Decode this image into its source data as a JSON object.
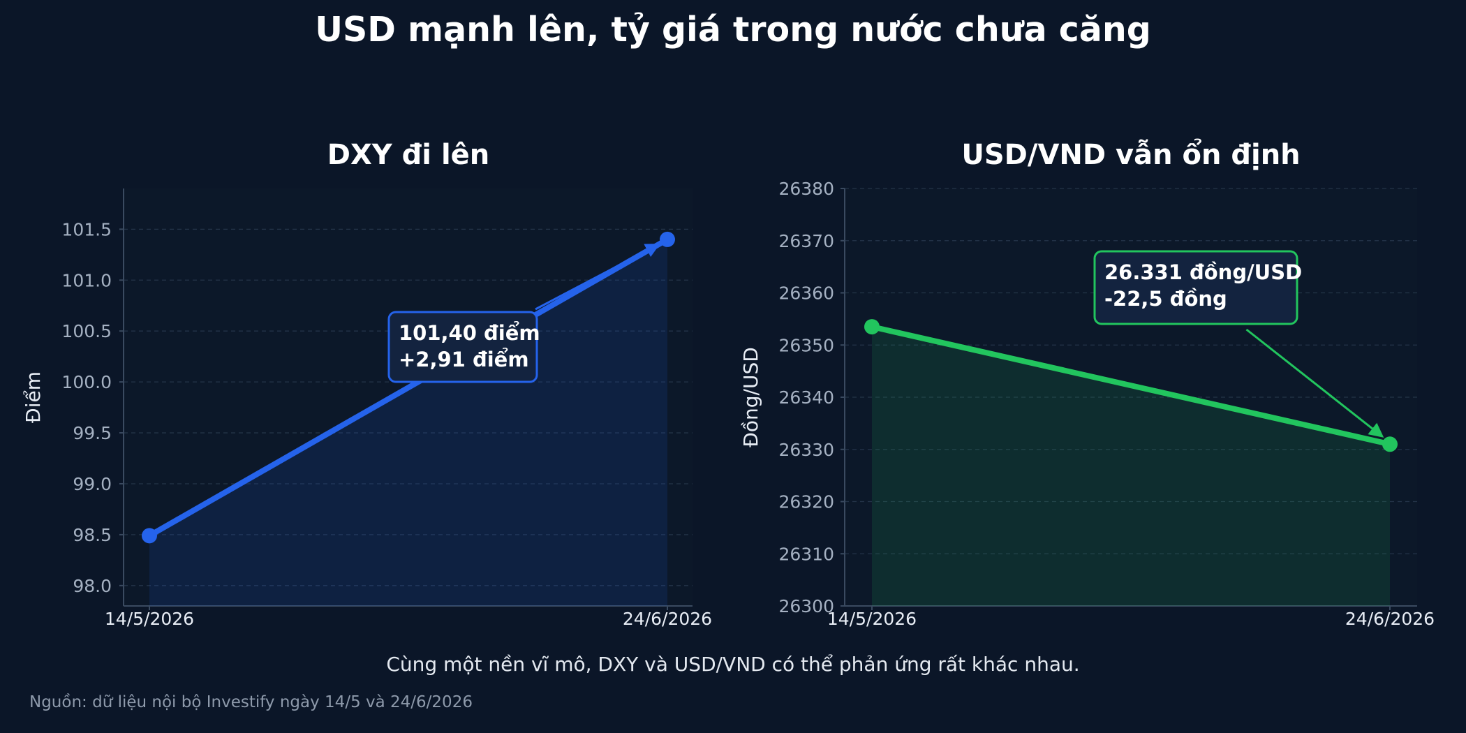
{
  "title": "USD mạnh lên, tỷ giá trong nước chưa căng",
  "caption": "Cùng một nền vĩ mô, DXY và USD/VND có thể phản ứng rất khác nhau.",
  "source": "Nguồn: dữ liệu nội bộ Investify ngày 14/5 và 24/6/2026",
  "colors": {
    "background": "#0b1628",
    "grid": "#243449",
    "axis": "#3a4a60",
    "dxy": "#2563eb",
    "usdvnd": "#22c55e",
    "annotation_fill": "#13233f"
  },
  "chart_data": [
    {
      "type": "line",
      "title": "DXY đi lên",
      "ylabel": "Điểm",
      "xlabel": "",
      "categories": [
        "14/5/2026",
        "24/6/2026"
      ],
      "values": [
        98.49,
        101.4
      ],
      "ylim": [
        97.8,
        101.9
      ],
      "yticks": [
        98.0,
        98.5,
        99.0,
        99.5,
        100.0,
        100.5,
        101.0,
        101.5
      ],
      "ytick_labels": [
        "98.0",
        "98.5",
        "99.0",
        "99.5",
        "100.0",
        "100.5",
        "101.0",
        "101.5"
      ],
      "grid": true,
      "annotation": {
        "lines": [
          "101,40 điểm",
          "+2,91 điểm"
        ],
        "target_index": 1
      }
    },
    {
      "type": "line",
      "title": "USD/VND vẫn ổn định",
      "ylabel": "Đồng/USD",
      "xlabel": "",
      "categories": [
        "14/5/2026",
        "24/6/2026"
      ],
      "values": [
        26353.5,
        26331
      ],
      "ylim": [
        26300,
        26380
      ],
      "yticks": [
        26300,
        26310,
        26320,
        26330,
        26340,
        26350,
        26360,
        26370,
        26380
      ],
      "ytick_labels": [
        "26300",
        "26310",
        "26320",
        "26330",
        "26340",
        "26350",
        "26360",
        "26370",
        "26380"
      ],
      "grid": true,
      "annotation": {
        "lines": [
          "26.331 đồng/USD",
          "-22,5 đồng"
        ],
        "target_index": 1
      }
    }
  ]
}
